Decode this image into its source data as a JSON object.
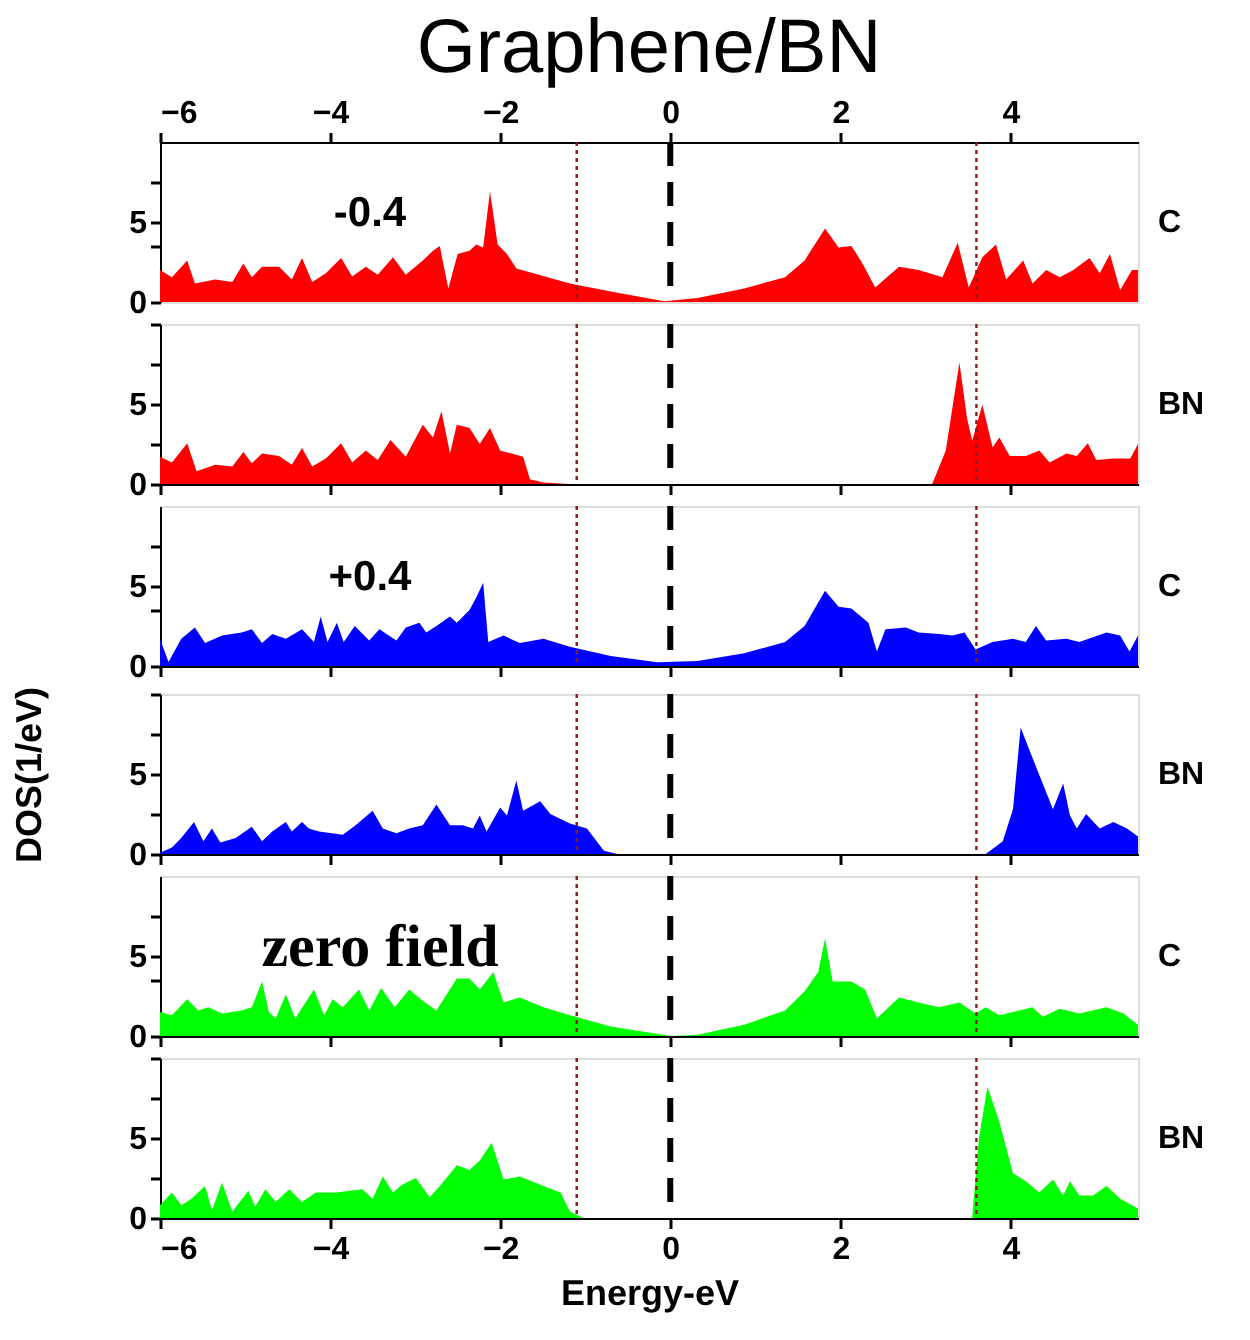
{
  "chart_data": [
    {
      "type": "area",
      "title": "Graphene/BN",
      "xlim": [
        -6,
        5.5
      ],
      "xticks": [
        -6,
        -4,
        -2,
        0,
        2,
        4
      ],
      "ylim": [
        0,
        10
      ],
      "yticks": [
        0,
        {
          "value": 3.5,
          "label": null
        },
        5,
        {
          "value": 7.5,
          "label": null
        }
      ],
      "y2label": "C",
      "annotations": [
        "-0.4"
      ],
      "ref_lines": [
        {
          "axis": "x",
          "value": 0,
          "color": "#000000",
          "line_style": "dashed"
        },
        {
          "axis": "x",
          "value": -1.1,
          "color": "#8b1a1a",
          "line_style": "dotted"
        },
        {
          "axis": "x",
          "value": 3.6,
          "color": "#8b1a1a",
          "line_style": "dotted"
        }
      ],
      "x": [
        -6.0,
        -5.86,
        -5.68,
        -5.59,
        -5.35,
        -5.15,
        -5.02,
        -4.92,
        -4.8,
        -4.6,
        -4.45,
        -4.33,
        -4.21,
        -4.05,
        -3.87,
        -3.74,
        -3.58,
        -3.44,
        -3.26,
        -3.11,
        -2.91,
        -2.79,
        -2.71,
        -2.61,
        -2.5,
        -2.36,
        -2.28,
        -2.2,
        -2.12,
        -2.03,
        -1.92,
        -1.81,
        -1.18,
        -0.7,
        -0.07,
        0.32,
        0.87,
        1.35,
        1.58,
        1.82,
        1.98,
        2.13,
        2.25,
        2.41,
        2.69,
        2.92,
        3.2,
        3.38,
        3.51,
        3.67,
        3.83,
        3.95,
        4.15,
        4.26,
        4.42,
        4.58,
        4.74,
        4.93,
        5.05,
        5.17,
        5.29,
        5.43,
        5.5
      ],
      "series": [
        {
          "color": "#ff0000",
          "values": [
            2.0,
            1.55,
            2.6,
            1.15,
            1.4,
            1.25,
            2.4,
            1.55,
            2.2,
            2.2,
            1.4,
            2.75,
            1.25,
            1.8,
            2.75,
            1.6,
            2.2,
            1.7,
            2.8,
            1.7,
            2.6,
            3.2,
            3.5,
            0.85,
            3.0,
            3.2,
            3.6,
            3.4,
            6.9,
            3.6,
            3.0,
            2.1,
            1.15,
            0.65,
            0.05,
            0.25,
            0.85,
            1.55,
            2.6,
            4.6,
            3.4,
            3.5,
            2.5,
            0.9,
            2.2,
            2.0,
            1.55,
            3.7,
            0.9,
            2.8,
            3.6,
            1.4,
            2.6,
            1.15,
            2.0,
            1.55,
            2.0,
            2.75,
            1.8,
            3.0,
            0.75,
            2.0,
            2.0
          ]
        }
      ]
    },
    {
      "type": "area",
      "xlim": [
        -6,
        5.5
      ],
      "xticks": [
        -6,
        -4,
        -2,
        0,
        2,
        4
      ],
      "ylim": [
        0,
        10
      ],
      "yticks": [
        0,
        {
          "value": 2.5,
          "label": null
        },
        5,
        {
          "value": 7.5,
          "label": null
        },
        {
          "value": 10,
          "label": null
        }
      ],
      "tick_labels": "y",
      "y2label": "BN",
      "ref_lines": [
        {
          "axis": "x",
          "value": 0,
          "color": "#000000",
          "line_style": "dashed"
        },
        {
          "axis": "x",
          "value": -1.1,
          "color": "#8b1a1a",
          "line_style": "dotted"
        },
        {
          "axis": "x",
          "value": 3.6,
          "color": "#8b1a1a",
          "line_style": "dotted"
        }
      ],
      "x": [
        -6.0,
        -5.86,
        -5.68,
        -5.57,
        -5.35,
        -5.15,
        -5.02,
        -4.92,
        -4.8,
        -4.6,
        -4.45,
        -4.33,
        -4.21,
        -4.05,
        -3.87,
        -3.74,
        -3.58,
        -3.44,
        -3.29,
        -3.11,
        -2.91,
        -2.79,
        -2.69,
        -2.59,
        -2.51,
        -2.36,
        -2.24,
        -2.12,
        -2.0,
        -1.73,
        -1.65,
        -1.49,
        -1.18,
        3.08,
        3.24,
        3.4,
        3.49,
        3.55,
        3.67,
        3.79,
        3.87,
        3.99,
        4.18,
        4.34,
        4.46,
        4.66,
        4.78,
        4.91,
        5.01,
        5.21,
        5.41,
        5.5
      ],
      "series": [
        {
          "color": "#ff0000",
          "values": [
            1.7,
            1.35,
            2.55,
            0.8,
            1.2,
            1.1,
            2.0,
            1.3,
            1.9,
            1.75,
            1.2,
            2.25,
            1.1,
            1.6,
            2.55,
            1.35,
            2.1,
            1.5,
            2.75,
            1.7,
            3.7,
            2.9,
            4.55,
            1.9,
            3.7,
            3.5,
            2.5,
            3.5,
            2.1,
            1.7,
            0.3,
            0.1,
            0,
            0,
            2.1,
            7.6,
            4.1,
            2.7,
            4.95,
            2.3,
            2.9,
            1.75,
            1.75,
            2.1,
            1.35,
            1.9,
            1.75,
            2.55,
            1.5,
            1.6,
            1.6,
            2.5
          ]
        }
      ]
    },
    {
      "type": "area",
      "xlim": [
        -6,
        5.5
      ],
      "xticks": [
        -6,
        -4,
        -2,
        0,
        2,
        4
      ],
      "ylim": [
        0,
        10
      ],
      "yticks": [
        0,
        {
          "value": 3.5,
          "label": null
        },
        5,
        {
          "value": 7.5,
          "label": null
        }
      ],
      "tick_labels": "y",
      "y2label": "C",
      "annotations": [
        "+0.4"
      ],
      "ref_lines": [
        {
          "axis": "x",
          "value": 0,
          "color": "#000000",
          "line_style": "dashed"
        },
        {
          "axis": "x",
          "value": -1.1,
          "color": "#8b1a1a",
          "line_style": "dotted"
        },
        {
          "axis": "x",
          "value": 3.6,
          "color": "#8b1a1a",
          "line_style": "dotted"
        }
      ],
      "x": [
        -6.0,
        -5.9,
        -5.75,
        -5.59,
        -5.47,
        -5.27,
        -5.04,
        -4.92,
        -4.8,
        -4.68,
        -4.52,
        -4.33,
        -4.19,
        -4.11,
        -4.03,
        -3.92,
        -3.84,
        -3.71,
        -3.54,
        -3.42,
        -3.22,
        -3.11,
        -2.95,
        -2.87,
        -2.75,
        -2.59,
        -2.51,
        -2.36,
        -2.28,
        -2.2,
        -2.14,
        -1.96,
        -1.77,
        -1.49,
        -1.18,
        -0.7,
        -0.15,
        0.32,
        0.87,
        1.35,
        1.58,
        1.82,
        1.98,
        2.13,
        2.33,
        2.43,
        2.53,
        2.77,
        2.92,
        3.16,
        3.32,
        3.46,
        3.59,
        3.79,
        4.03,
        4.18,
        4.3,
        4.42,
        4.66,
        4.81,
        5.13,
        5.29,
        5.4,
        5.5
      ],
      "series": [
        {
          "color": "#0000ff",
          "values": [
            1.7,
            0.25,
            1.7,
            2.4,
            1.43,
            1.9,
            2.1,
            2.3,
            1.43,
            2.0,
            1.7,
            2.3,
            1.5,
            3.1,
            1.5,
            2.7,
            1.5,
            2.5,
            1.6,
            2.3,
            1.6,
            2.4,
            2.7,
            2.1,
            2.5,
            3.1,
            2.7,
            3.5,
            4.3,
            5.2,
            1.5,
            1.9,
            1.43,
            1.7,
            1.2,
            0.63,
            0.24,
            0.32,
            0.79,
            1.5,
            2.5,
            4.7,
            3.7,
            3.6,
            2.7,
            0.9,
            2.3,
            2.4,
            2.1,
            2.0,
            1.9,
            2.1,
            1.03,
            1.5,
            1.7,
            1.5,
            2.5,
            1.6,
            1.7,
            1.5,
            2.1,
            1.9,
            0.9,
            1.9
          ]
        }
      ]
    },
    {
      "type": "area",
      "xlim": [
        -6,
        5.5
      ],
      "xticks": [
        -6,
        -4,
        -2,
        0,
        2,
        4
      ],
      "ylim": [
        0,
        10
      ],
      "yticks": [
        0,
        {
          "value": 2.5,
          "label": null
        },
        5,
        {
          "value": 7.5,
          "label": null
        },
        {
          "value": 10,
          "label": null
        }
      ],
      "tick_labels": "y",
      "ylabel": "DOS(1/eV)",
      "y2label": "BN",
      "ref_lines": [
        {
          "axis": "x",
          "value": 0,
          "color": "#000000",
          "line_style": "dashed"
        },
        {
          "axis": "x",
          "value": -1.1,
          "color": "#8b1a1a",
          "line_style": "dotted"
        },
        {
          "axis": "x",
          "value": 3.6,
          "color": "#8b1a1a",
          "line_style": "dotted"
        }
      ],
      "x": [
        -6.0,
        -5.86,
        -5.75,
        -5.6,
        -5.49,
        -5.39,
        -5.29,
        -5.11,
        -4.92,
        -4.8,
        -4.68,
        -4.52,
        -4.45,
        -4.33,
        -4.25,
        -4.13,
        -3.85,
        -3.7,
        -3.5,
        -3.38,
        -3.22,
        -3.07,
        -2.91,
        -2.75,
        -2.59,
        -2.44,
        -2.32,
        -2.24,
        -2.16,
        -2.0,
        -1.92,
        -1.81,
        -1.73,
        -1.53,
        -1.41,
        -1.18,
        -0.98,
        -0.78,
        -0.62,
        3.71,
        3.91,
        4.03,
        4.12,
        4.26,
        4.5,
        4.62,
        4.7,
        4.78,
        4.89,
        5.05,
        5.21,
        5.37,
        5.5
      ],
      "series": [
        {
          "color": "#0000ff",
          "values": [
            0.08,
            0.4,
            1.0,
            2.0,
            0.8,
            1.6,
            0.72,
            1.0,
            1.7,
            0.8,
            1.4,
            2.0,
            1.4,
            2.0,
            1.6,
            1.4,
            1.2,
            1.8,
            2.7,
            1.6,
            1.3,
            1.6,
            1.8,
            3.1,
            1.8,
            1.8,
            1.6,
            2.4,
            1.4,
            2.9,
            2.4,
            4.6,
            2.7,
            3.3,
            2.5,
            1.9,
            1.6,
            0.2,
            0,
            0,
            0.8,
            2.8,
            7.9,
            6.0,
            2.8,
            4.4,
            2.4,
            1.6,
            2.5,
            1.6,
            2.0,
            1.6,
            1.1
          ]
        }
      ]
    },
    {
      "type": "area",
      "xlim": [
        -6,
        5.5
      ],
      "xticks": [
        -6,
        -4,
        -2,
        0,
        2,
        4
      ],
      "ylim": [
        0,
        10
      ],
      "yticks": [
        0,
        {
          "value": 3.5,
          "label": null
        },
        5,
        {
          "value": 7.5,
          "label": null
        }
      ],
      "tick_labels": "y",
      "y2label": "C",
      "annotations": [
        "zero field"
      ],
      "ref_lines": [
        {
          "axis": "x",
          "value": 0,
          "color": "#000000",
          "line_style": "dashed"
        },
        {
          "axis": "x",
          "value": -1.1,
          "color": "#8b1a1a",
          "line_style": "dotted"
        },
        {
          "axis": "x",
          "value": 3.6,
          "color": "#8b1a1a",
          "line_style": "dotted"
        }
      ],
      "x": [
        -6.0,
        -5.86,
        -5.68,
        -5.55,
        -5.43,
        -5.27,
        -5.04,
        -4.92,
        -4.8,
        -4.72,
        -4.64,
        -4.52,
        -4.41,
        -4.19,
        -4.07,
        -3.97,
        -3.85,
        -3.66,
        -3.54,
        -3.4,
        -3.24,
        -3.07,
        -2.91,
        -2.75,
        -2.51,
        -2.36,
        -2.24,
        -2.08,
        -1.96,
        -1.77,
        -1.49,
        -1.18,
        -0.7,
        0.01,
        0.32,
        0.87,
        1.35,
        1.58,
        1.74,
        1.82,
        1.91,
        2.13,
        2.29,
        2.43,
        2.69,
        2.92,
        3.16,
        3.4,
        3.59,
        3.71,
        3.87,
        4.03,
        4.26,
        4.38,
        4.58,
        4.81,
        5.13,
        5.33,
        5.5
      ],
      "series": [
        {
          "color": "#00ff00",
          "values": [
            1.5,
            1.3,
            2.3,
            1.6,
            1.8,
            1.4,
            1.6,
            1.8,
            3.4,
            1.5,
            1.1,
            2.6,
            1.1,
            2.9,
            1.3,
            2.3,
            1.8,
            2.9,
            1.6,
            3.0,
            1.8,
            2.9,
            2.2,
            1.6,
            3.6,
            3.6,
            2.9,
            4.0,
            2.1,
            2.4,
            1.8,
            1.3,
            0.6,
            0,
            0.08,
            0.71,
            1.6,
            2.8,
            4.0,
            6.1,
            3.4,
            3.4,
            2.9,
            1.1,
            2.4,
            2.1,
            1.8,
            2.1,
            1.4,
            1.8,
            1.3,
            1.5,
            1.8,
            1.2,
            1.7,
            1.4,
            1.8,
            1.4,
            0.7
          ]
        }
      ]
    },
    {
      "type": "area",
      "xlim": [
        -6,
        5.5
      ],
      "xticks": [
        -6,
        -4,
        -2,
        0,
        2,
        4
      ],
      "ylim": [
        0,
        10
      ],
      "yticks": [
        0,
        {
          "value": 2.5,
          "label": null
        },
        5,
        {
          "value": 7.5,
          "label": null
        },
        {
          "value": 10,
          "label": null
        }
      ],
      "xlabel": "Energy-eV",
      "y2label": "BN",
      "ref_lines": [
        {
          "axis": "x",
          "value": 0,
          "color": "#000000",
          "line_style": "dashed"
        },
        {
          "axis": "x",
          "value": -1.1,
          "color": "#8b1a1a",
          "line_style": "dotted"
        },
        {
          "axis": "x",
          "value": 3.6,
          "color": "#8b1a1a",
          "line_style": "dotted"
        }
      ],
      "x": [
        -6.0,
        -5.86,
        -5.75,
        -5.63,
        -5.47,
        -5.39,
        -5.27,
        -5.15,
        -4.96,
        -4.88,
        -4.76,
        -4.64,
        -4.48,
        -4.33,
        -4.17,
        -3.93,
        -3.62,
        -3.5,
        -3.38,
        -3.26,
        -3.15,
        -2.99,
        -2.83,
        -2.71,
        -2.51,
        -2.36,
        -2.24,
        -2.1,
        -1.96,
        -1.77,
        -1.49,
        -1.29,
        -1.18,
        -1.02,
        3.55,
        3.63,
        3.73,
        3.87,
        4.03,
        4.18,
        4.34,
        4.5,
        4.62,
        4.7,
        4.81,
        4.97,
        5.13,
        5.29,
        5.5
      ],
      "series": [
        {
          "color": "#00ff00",
          "values": [
            0.8,
            1.6,
            0.8,
            1.2,
            2.0,
            0.48,
            2.2,
            0.4,
            1.7,
            0.72,
            1.8,
            1.0,
            1.8,
            1.0,
            1.6,
            1.6,
            1.8,
            1.2,
            2.6,
            1.6,
            2.1,
            2.5,
            1.3,
            2.0,
            3.3,
            3.0,
            3.6,
            4.7,
            2.4,
            2.6,
            2.0,
            1.6,
            0.4,
            0,
            0,
            5.0,
            8.2,
            6.0,
            2.8,
            2.3,
            1.6,
            2.4,
            1.4,
            2.3,
            1.4,
            1.4,
            2.0,
            1.2,
            0.6
          ]
        }
      ]
    }
  ]
}
